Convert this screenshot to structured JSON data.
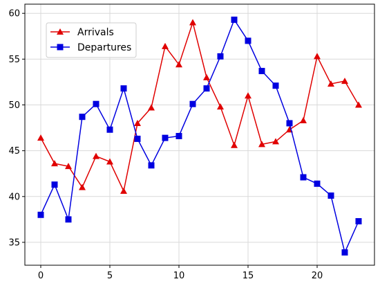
{
  "chart_data": {
    "type": "line",
    "title": "",
    "xlabel": "",
    "ylabel": "",
    "xlim": [
      -1.15,
      24.15
    ],
    "ylim": [
      32.5,
      61
    ],
    "xticks": [
      0,
      5,
      10,
      15,
      20
    ],
    "yticks": [
      35,
      40,
      45,
      50,
      55,
      60
    ],
    "grid": true,
    "legend_position": "upper-left",
    "x": [
      0,
      1,
      2,
      3,
      4,
      5,
      6,
      7,
      8,
      9,
      10,
      11,
      12,
      13,
      14,
      15,
      16,
      17,
      18,
      19,
      20,
      21,
      22,
      23
    ],
    "series": [
      {
        "name": "Arrivals",
        "color": "#e00000",
        "marker": "triangle",
        "values": [
          46.4,
          43.6,
          43.3,
          41.0,
          44.4,
          43.8,
          40.6,
          48.0,
          49.7,
          56.4,
          54.4,
          59.0,
          53.0,
          49.8,
          45.6,
          51.0,
          45.7,
          46.0,
          47.3,
          48.3,
          55.3,
          52.3,
          52.6,
          50.0
        ]
      },
      {
        "name": "Departures",
        "color": "#0000e0",
        "marker": "square",
        "values": [
          38.0,
          41.3,
          37.5,
          48.7,
          50.1,
          47.3,
          51.8,
          46.3,
          43.4,
          46.4,
          46.6,
          50.1,
          51.8,
          55.3,
          59.3,
          57.0,
          53.7,
          52.1,
          48.0,
          42.1,
          41.4,
          40.1,
          33.9,
          37.3
        ]
      }
    ]
  }
}
